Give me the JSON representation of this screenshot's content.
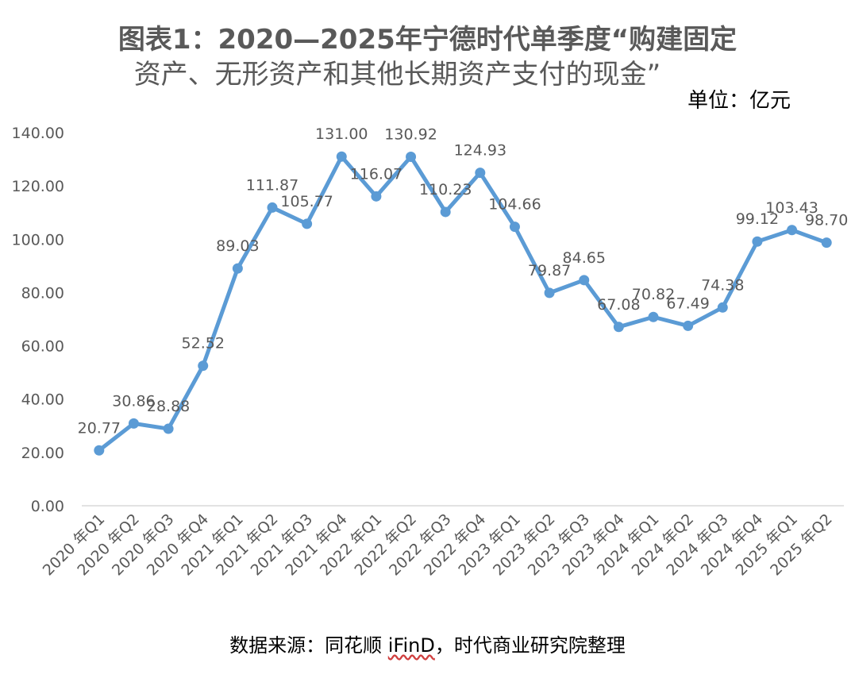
{
  "title": {
    "line1": "图表1：2020—2025年宁德时代单季度“购建固定",
    "line2": "资产、无形资产和其他长期资产支付的现金”"
  },
  "unit": "单位：亿元",
  "source": {
    "prefix": "数据来源：同花顺 ",
    "brand": "iFinD",
    "suffix": "，时代商业研究院整理"
  },
  "colors": {
    "line": "#5b9bd5",
    "axis": "#d9d9d9",
    "text": "#595959"
  },
  "chart_data": {
    "type": "line",
    "categories": [
      "2020年Q1",
      "2020年Q2",
      "2020年Q3",
      "2020年Q4",
      "2021年Q1",
      "2021年Q2",
      "2021年Q3",
      "2021年Q4",
      "2022年Q1",
      "2022年Q2",
      "2022年Q3",
      "2022年Q4",
      "2023年Q1",
      "2023年Q2",
      "2023年Q3",
      "2023年Q4",
      "2024年Q1",
      "2024年Q2",
      "2024年Q3",
      "2024年Q4",
      "2025年Q1",
      "2025年Q2"
    ],
    "category_labels": [
      "2020 年Q1",
      "2020 年Q2",
      "2020 年Q3",
      "2020 年Q4",
      "2021 年Q1",
      "2021 年Q2",
      "2021 年Q3",
      "2021 年Q4",
      "2022 年Q1",
      "2022 年Q2",
      "2022 年Q3",
      "2022 年Q4",
      "2023 年Q1",
      "2023 年Q2",
      "2023 年Q3",
      "2023 年Q4",
      "2024 年Q1",
      "2024 年Q2",
      "2024 年Q3",
      "2024 年Q4",
      "2025 年Q1",
      "2025 年Q2"
    ],
    "values": [
      20.77,
      30.86,
      28.88,
      52.52,
      89.03,
      111.87,
      105.77,
      131.0,
      116.07,
      130.92,
      110.23,
      124.93,
      104.66,
      79.87,
      84.65,
      67.08,
      70.82,
      67.49,
      74.38,
      99.12,
      103.43,
      98.7
    ],
    "value_labels": [
      "20.77",
      "30.86",
      "28.88",
      "52.52",
      "89.03",
      "111.87",
      "105.77",
      "131.00",
      "116.07",
      "130.92",
      "110.23",
      "124.93",
      "104.66",
      "79.87",
      "84.65",
      "67.08",
      "70.82",
      "67.49",
      "74.38",
      "99.12",
      "103.43",
      "98.70"
    ],
    "ylim": [
      0,
      140
    ],
    "yticks": [
      "0.00",
      "20.00",
      "40.00",
      "60.00",
      "80.00",
      "100.00",
      "120.00",
      "140.00"
    ],
    "grid": false,
    "legend": "none"
  }
}
